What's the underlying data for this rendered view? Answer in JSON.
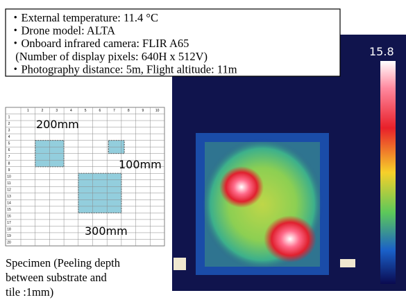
{
  "info_box": {
    "lines": [
      "・External temperature: 11.4 °C",
      "・Drone model: ALTA",
      "・Onboard infrared camera: FLIR A65",
      "  (Number of display pixels: 640H x 512V)",
      "・Photography distance: 5m, Flight altitude: 11m"
    ]
  },
  "thermal_image": {
    "scale_max": "15.8"
  },
  "specimen": {
    "column_numbers": [
      "1",
      "2",
      "3",
      "4",
      "5",
      "6",
      "7",
      "8",
      "9",
      "10"
    ],
    "row_numbers": [
      "1",
      "2",
      "3",
      "4",
      "5",
      "6",
      "7",
      "8",
      "9",
      "10",
      "11",
      "12",
      "13",
      "14",
      "15",
      "16",
      "17",
      "18",
      "19",
      "20"
    ],
    "defect_labels": [
      "200mm",
      "100mm",
      "300mm"
    ],
    "caption": [
      "Specimen (Peeling depth",
      "between substrate and",
      "tile :1mm)"
    ]
  }
}
